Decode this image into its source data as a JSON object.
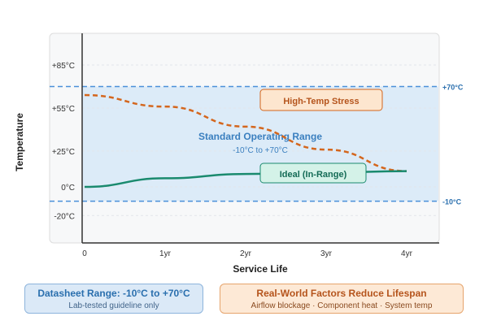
{
  "chart_data": {
    "type": "line",
    "xlabel": "Service Life",
    "ylabel": "Temperature",
    "x_ticks": [
      "0",
      "1yr",
      "2yr",
      "3yr",
      "4yr"
    ],
    "y_ticks": [
      {
        "value": 85,
        "label": "+85°C"
      },
      {
        "value": 55,
        "label": "+55°C"
      },
      {
        "value": 25,
        "label": "+25°C"
      },
      {
        "value": 0,
        "label": "0°C"
      },
      {
        "value": -20,
        "label": "-20°C"
      }
    ],
    "ylim": [
      -30,
      97
    ],
    "xlim": [
      0,
      4.4
    ],
    "grid": true,
    "operating_band": {
      "min": -10,
      "max": 70,
      "min_label": "-10°C",
      "max_label": "+70°C",
      "title": "Standard Operating Range",
      "subtitle": "-10°C to +70°C",
      "color": "#4a90d9"
    },
    "series": [
      {
        "name": "High-Temp Stress",
        "style": "dashed",
        "color": "#d4661d",
        "x": [
          0,
          1,
          2,
          3,
          4
        ],
        "y": [
          64,
          56,
          42,
          26,
          11
        ]
      },
      {
        "name": "Ideal (In-Range)",
        "style": "solid",
        "color": "#1a8a6e",
        "x": [
          0,
          1,
          2,
          3,
          4
        ],
        "y": [
          0,
          6,
          9,
          10,
          11
        ]
      }
    ]
  },
  "footer": {
    "left_title": "Datasheet Range: -10°C to +70°C",
    "left_sub": "Lab-tested guideline only",
    "right_title": "Real-World Factors Reduce Lifespan",
    "right_sub": "Airflow blockage · Component heat · System temp"
  },
  "colors": {
    "stress_box_fill": "#fde6cf",
    "ideal_box_fill": "#d4f2e8",
    "band_fill": "#dcebf8",
    "panel_fill": "#f7f8f9"
  }
}
